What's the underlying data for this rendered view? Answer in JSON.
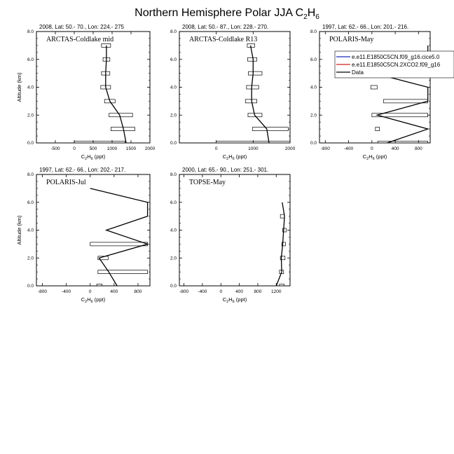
{
  "figure": {
    "title": "Northern Hemisphere Polar JJA C",
    "title_sub": "2",
    "title_tail": "H",
    "title_sub2": "6"
  },
  "chart_data": [
    {
      "type": "line",
      "panel_label": "ARCTAS-Coldlake mid",
      "header": "2008, Lat:  50.- 70., Lon: 224.- 275",
      "xlabel": "C2H6 (ppt)",
      "ylabel": "Altitude (km)",
      "xlim": [
        -1000,
        2000
      ],
      "ylim": [
        0,
        8
      ],
      "xticks": [
        -500,
        0,
        500,
        1000,
        1500,
        2000
      ],
      "yticks": [
        0,
        2,
        4,
        6,
        8
      ],
      "series": [
        {
          "name": "Data",
          "color": "#000000",
          "points": [
            [
              1370,
              0
            ],
            [
              1300,
              1
            ],
            [
              1200,
              2
            ],
            [
              940,
              3
            ],
            [
              830,
              4
            ],
            [
              830,
              5
            ],
            [
              850,
              6
            ],
            [
              850,
              7
            ]
          ],
          "boxes": [
            [
              0,
              1340
            ],
            [
              970,
              1600
            ],
            [
              920,
              1540
            ],
            [
              800,
              1080
            ],
            [
              700,
              960
            ],
            [
              720,
              940
            ],
            [
              760,
              940
            ],
            [
              720,
              960
            ]
          ]
        }
      ]
    },
    {
      "type": "line",
      "panel_label": "ARCTAS-Coldlake R13",
      "header": "2008, Lat:  50.- 87., Lon: 228.- 270.",
      "xlabel": "C2H6 (ppt)",
      "ylabel": "",
      "xlim": [
        -1000,
        2000
      ],
      "ylim": [
        0,
        8
      ],
      "xticks": [
        0,
        1000,
        2000
      ],
      "yticks": [
        0,
        2,
        4,
        6,
        8
      ],
      "series": [
        {
          "name": "Data",
          "color": "#000000",
          "points": [
            [
              1430,
              0
            ],
            [
              1370,
              1
            ],
            [
              1040,
              2
            ],
            [
              960,
              3
            ],
            [
              960,
              4
            ],
            [
              1000,
              5
            ],
            [
              1000,
              6
            ],
            [
              930,
              7
            ]
          ],
          "boxes": [
            [
              0,
              2480
            ],
            [
              980,
              1950
            ],
            [
              860,
              1240
            ],
            [
              790,
              1100
            ],
            [
              820,
              1150
            ],
            [
              870,
              1240
            ],
            [
              850,
              1100
            ],
            [
              840,
              1040
            ]
          ]
        }
      ]
    },
    {
      "type": "line",
      "panel_label": "POLARIS-May",
      "header": "1997, Lat: 62.- 66., Lon: 201.- 216.",
      "xlabel": "C2H6 (ppt)",
      "ylabel": "",
      "xlim": [
        -900,
        1000
      ],
      "ylim": [
        0,
        8
      ],
      "xticks": [
        -800,
        -400,
        0,
        400,
        800
      ],
      "yticks": [
        0,
        2,
        4,
        6,
        8
      ],
      "legend": {
        "placement": "top-right",
        "entries": [
          {
            "name": "e.e11.E1850C5CN.f09_g16.cice5.0",
            "color": "#1f2fbf"
          },
          {
            "name": "e.e11.E1850C5CN.2XCO2.f09_g16",
            "color": "#d42020"
          },
          {
            "name": "Data",
            "color": "#000000"
          }
        ]
      },
      "series": [
        {
          "name": "Data",
          "color": "#000000",
          "points": [
            [
              260,
              0
            ],
            [
              960,
              1
            ],
            [
              90,
              2
            ],
            [
              960,
              3
            ],
            [
              960,
              4
            ],
            [
              40,
              5
            ],
            [
              960,
              6
            ],
            [
              960,
              7
            ]
          ],
          "boxes": [
            [
              100,
              960
            ],
            [
              60,
              130
            ],
            [
              0,
              960
            ],
            [
              200,
              960
            ],
            [
              -20,
              90
            ],
            [
              0,
              960
            ],
            [
              100,
              960
            ]
          ]
        }
      ]
    },
    {
      "type": "line",
      "panel_label": "POLARIS-Jul",
      "header": "1997, Lat: 62.- 66., Lon: 202.- 217.",
      "xlabel": "C2H6 (ppt)",
      "ylabel": "Altitude (km)",
      "xlim": [
        -900,
        1000
      ],
      "ylim": [
        0,
        8
      ],
      "xticks": [
        -800,
        -400,
        0,
        400,
        800
      ],
      "yticks": [
        0,
        2,
        4,
        6,
        8
      ],
      "series": [
        {
          "name": "Data",
          "color": "#000000",
          "points": [
            [
              450,
              0
            ],
            [
              310,
              1
            ],
            [
              150,
              2
            ],
            [
              960,
              3
            ],
            [
              270,
              4
            ],
            [
              960,
              5
            ],
            [
              960,
              6
            ],
            [
              0,
              7
            ]
          ],
          "boxes": [
            [
              110,
              200
            ],
            [
              130,
              960
            ],
            [
              130,
              300
            ],
            [
              0,
              960
            ]
          ]
        }
      ]
    },
    {
      "type": "line",
      "panel_label": "TOPSE-May",
      "header": "2000, Lat: 65.- 90., Lon: 251.- 301.",
      "xlabel": "C2H6 (ppt)",
      "ylabel": "",
      "xlim": [
        -900,
        1500
      ],
      "ylim": [
        0,
        8
      ],
      "xticks": [
        -800,
        -400,
        0,
        400,
        800,
        1200
      ],
      "yticks": [
        0,
        2,
        4,
        6,
        8
      ],
      "series": [
        {
          "name": "Data",
          "color": "#000000",
          "points": [
            [
              1200,
              0
            ],
            [
              1320,
              1
            ],
            [
              1310,
              2
            ],
            [
              1340,
              3
            ],
            [
              1360,
              4
            ],
            [
              1380,
              5
            ],
            [
              1330,
              6
            ]
          ],
          "boxes": [
            [
              1270,
              1370
            ],
            [
              1270,
              1360
            ],
            [
              1290,
              1390
            ],
            [
              1320,
              1400
            ],
            [
              1340,
              1420
            ],
            [
              1290,
              1380
            ]
          ]
        }
      ]
    }
  ]
}
